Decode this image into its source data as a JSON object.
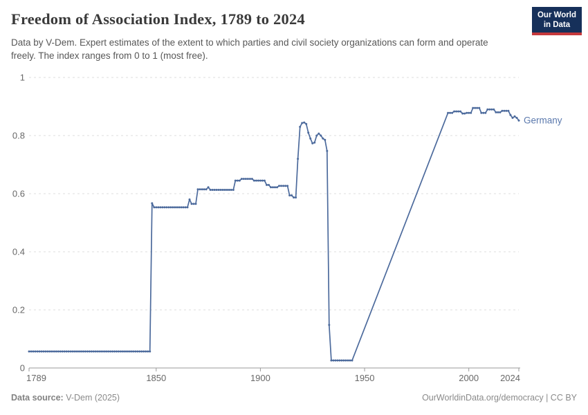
{
  "header": {
    "title": "Freedom of Association Index, 1789 to 2024",
    "subtitle": "Data by V-Dem. Expert estimates of the extent to which parties and civil society organizations can form and operate freely. The index ranges from 0 to 1 (most free).",
    "logo": {
      "line1": "Our World",
      "line2": "in Data",
      "bg_color": "#16305a",
      "accent_color": "#c5393c"
    }
  },
  "footer": {
    "source_label": "Data source:",
    "source_value": " V-Dem (2025)",
    "link_text": "OurWorldinData.org/democracy",
    "separator": " | ",
    "license_text": "CC BY"
  },
  "chart_data": {
    "type": "line",
    "title": "Freedom of Association Index, 1789 to 2024",
    "entity_label": "Germany",
    "line_color": "#4C6A9C",
    "entity_label_color": "#5b79ad",
    "grid_color": "#dcdcdc",
    "axis_color": "#9a9a9a",
    "tick_label_color": "#686868",
    "xlabel": "",
    "ylabel": "",
    "xlim": [
      1789,
      2024
    ],
    "ylim": [
      0,
      1
    ],
    "x_ticks": [
      1789,
      1850,
      1900,
      1950,
      2000,
      2024
    ],
    "y_ticks": [
      0,
      0.2,
      0.4,
      0.6,
      0.8,
      1
    ],
    "grid": "dashed horizontal gridlines, solid bottom axis",
    "legend_position": "end-of-line label",
    "gap_note": "no data for 1945-1989; chart connects 1944 to 1990 with a straight line",
    "series": [
      {
        "name": "Germany",
        "encoding": "runs of [start_year, end_year, value] expanded to one point per year",
        "runs": [
          [
            1789,
            1847,
            0.057
          ],
          [
            1848,
            1848,
            0.567
          ],
          [
            1849,
            1865,
            0.553
          ],
          [
            1866,
            1866,
            0.58
          ],
          [
            1867,
            1869,
            0.565
          ],
          [
            1870,
            1874,
            0.615
          ],
          [
            1875,
            1875,
            0.622
          ],
          [
            1876,
            1887,
            0.613
          ],
          [
            1888,
            1890,
            0.645
          ],
          [
            1891,
            1896,
            0.651
          ],
          [
            1897,
            1902,
            0.645
          ],
          [
            1903,
            1904,
            0.63
          ],
          [
            1905,
            1908,
            0.622
          ],
          [
            1909,
            1913,
            0.627
          ],
          [
            1914,
            1915,
            0.594
          ],
          [
            1916,
            1917,
            0.587
          ],
          [
            1918,
            1918,
            0.72
          ],
          [
            1919,
            1919,
            0.83
          ],
          [
            1920,
            1920,
            0.843
          ],
          [
            1921,
            1921,
            0.845
          ],
          [
            1922,
            1922,
            0.84
          ],
          [
            1923,
            1923,
            0.81
          ],
          [
            1924,
            1924,
            0.79
          ],
          [
            1925,
            1925,
            0.773
          ],
          [
            1926,
            1926,
            0.776
          ],
          [
            1927,
            1927,
            0.8
          ],
          [
            1928,
            1928,
            0.807
          ],
          [
            1929,
            1929,
            0.8
          ],
          [
            1930,
            1930,
            0.79
          ],
          [
            1931,
            1931,
            0.785
          ],
          [
            1932,
            1932,
            0.747
          ],
          [
            1933,
            1933,
            0.148
          ],
          [
            1934,
            1944,
            0.026
          ],
          [
            1990,
            1992,
            0.878
          ],
          [
            1993,
            1996,
            0.883
          ],
          [
            1997,
            1998,
            0.876
          ],
          [
            1999,
            2001,
            0.878
          ],
          [
            2002,
            2005,
            0.895
          ],
          [
            2006,
            2008,
            0.878
          ],
          [
            2009,
            2012,
            0.89
          ],
          [
            2013,
            2015,
            0.88
          ],
          [
            2016,
            2019,
            0.885
          ],
          [
            2020,
            2020,
            0.871
          ],
          [
            2021,
            2021,
            0.861
          ],
          [
            2022,
            2022,
            0.866
          ],
          [
            2023,
            2023,
            0.861
          ],
          [
            2024,
            2024,
            0.852
          ]
        ]
      }
    ]
  }
}
